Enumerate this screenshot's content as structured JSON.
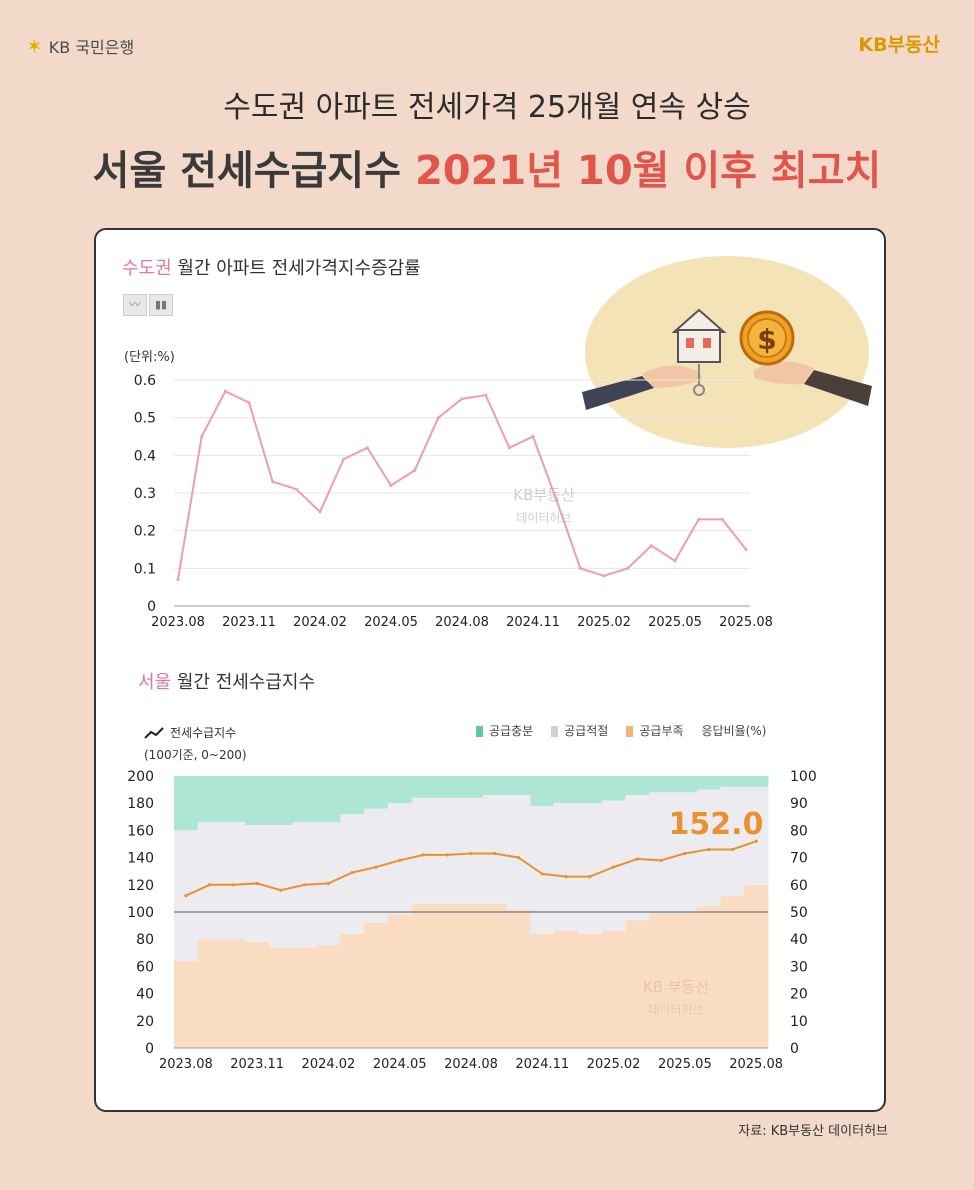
{
  "header": {
    "bank_logo_text": "KB 국민은행",
    "brand_right": "KB부동산",
    "title_line1": "수도권 아파트 전세가격 25개월 연속 상승",
    "title_line2_main": "서울 전세수급지수 ",
    "title_line2_highlight": "2021년 10월 이후 최고치"
  },
  "chart1": {
    "title_highlight": "수도권",
    "title_rest": " 월간 아파트 전세가격지수증감률",
    "unit_label": "(단위:%)",
    "watermark_line1": "KB부동산",
    "watermark_line2": "데이터허브"
  },
  "chart2": {
    "title_highlight": "서울",
    "title_rest": " 월간 전세수급지수",
    "line_legend": "전세수급지수",
    "unit_label": "(100기준, 0~200)",
    "legend": [
      "공급충분",
      "공급적절",
      "공급부족",
      "응답비율(%)"
    ],
    "latest_value_label": "152.0",
    "watermark_line1": "KB 부동산",
    "watermark_line2": "데이터허브"
  },
  "source": "자료: KB부동산 데이터허브",
  "colors": {
    "line_pink": "#ee9bbb",
    "line_orange": "#e8912f",
    "supply_sufficient": "#aee6d6",
    "supply_adequate": "#ececf0",
    "supply_short": "#f9dcc2",
    "accent_red": "#e0564a"
  },
  "chart_data": [
    {
      "type": "line",
      "x": [
        "2023.08",
        "2023.09",
        "2023.10",
        "2023.11",
        "2023.12",
        "2024.01",
        "2024.02",
        "2024.03",
        "2024.04",
        "2024.05",
        "2024.06",
        "2024.07",
        "2024.08",
        "2024.09",
        "2024.10",
        "2024.11",
        "2024.12",
        "2025.01",
        "2025.02",
        "2025.03",
        "2025.04",
        "2025.05",
        "2025.06",
        "2025.07",
        "2025.08"
      ],
      "tick_labels": [
        "2023.08",
        "2023.11",
        "2024.02",
        "2024.05",
        "2024.08",
        "2024.11",
        "2025.02",
        "2025.05",
        "2025.08"
      ],
      "series": [
        {
          "values": [
            0.07,
            0.45,
            0.57,
            0.54,
            0.33,
            0.31,
            0.25,
            0.39,
            0.42,
            0.32,
            0.36,
            0.5,
            0.55,
            0.56,
            0.42,
            0.45,
            0.28,
            0.1,
            0.08,
            0.1,
            0.16,
            0.12,
            0.23,
            0.23,
            0.15
          ]
        }
      ],
      "ylabel": "(단위:%)",
      "ylim": [
        0,
        0.6
      ],
      "yticks": [
        "0",
        "0.1",
        "0.2",
        "0.3",
        "0.4",
        "0.5",
        "0.6"
      ],
      "grid": true
    },
    {
      "type": "bar",
      "x": [
        "2023.08",
        "2023.09",
        "2023.10",
        "2023.11",
        "2023.12",
        "2024.01",
        "2024.02",
        "2024.03",
        "2024.04",
        "2024.05",
        "2024.06",
        "2024.07",
        "2024.08",
        "2024.09",
        "2024.10",
        "2024.11",
        "2024.12",
        "2025.01",
        "2025.02",
        "2025.03",
        "2025.04",
        "2025.05",
        "2025.06",
        "2025.07",
        "2025.08"
      ],
      "tick_labels": [
        "2023.08",
        "2023.11",
        "2024.02",
        "2024.05",
        "2024.08",
        "2024.11",
        "2025.02",
        "2025.05",
        "2025.08"
      ],
      "series": [
        {
          "name": "공급부족",
          "axis": "right",
          "values": [
            32,
            40,
            40,
            39,
            37,
            37,
            38,
            42,
            46,
            49,
            53,
            53,
            53,
            53,
            51,
            42,
            43,
            42,
            43,
            47,
            50,
            50,
            52,
            56,
            60
          ]
        },
        {
          "name": "공급적절",
          "axis": "right",
          "values": [
            48,
            43,
            43,
            43,
            45,
            46,
            45,
            44,
            42,
            41,
            39,
            39,
            39,
            40,
            42,
            47,
            47,
            48,
            48,
            46,
            44,
            44,
            43,
            40,
            36
          ]
        },
        {
          "name": "공급충분",
          "axis": "right",
          "values": [
            20,
            17,
            17,
            18,
            18,
            17,
            17,
            14,
            12,
            10,
            8,
            8,
            8,
            7,
            7,
            11,
            10,
            10,
            9,
            7,
            6,
            6,
            5,
            4,
            4
          ]
        },
        {
          "name": "전세수급지수",
          "axis": "left",
          "values": [
            112,
            120,
            120,
            121,
            116,
            120,
            121,
            129,
            133,
            138,
            142,
            142,
            143,
            143,
            140,
            128,
            126,
            126,
            133,
            139,
            138,
            143,
            146,
            146,
            152
          ]
        }
      ],
      "ylim_left": [
        0,
        200
      ],
      "ylim_right": [
        0,
        100
      ],
      "yticks_left": [
        "0",
        "20",
        "40",
        "60",
        "80",
        "100",
        "120",
        "140",
        "160",
        "180",
        "200"
      ],
      "yticks_right": [
        "0",
        "10",
        "20",
        "30",
        "40",
        "50",
        "60",
        "70",
        "80",
        "90",
        "100"
      ],
      "reference_line": 100,
      "annotation": "152.0"
    }
  ]
}
